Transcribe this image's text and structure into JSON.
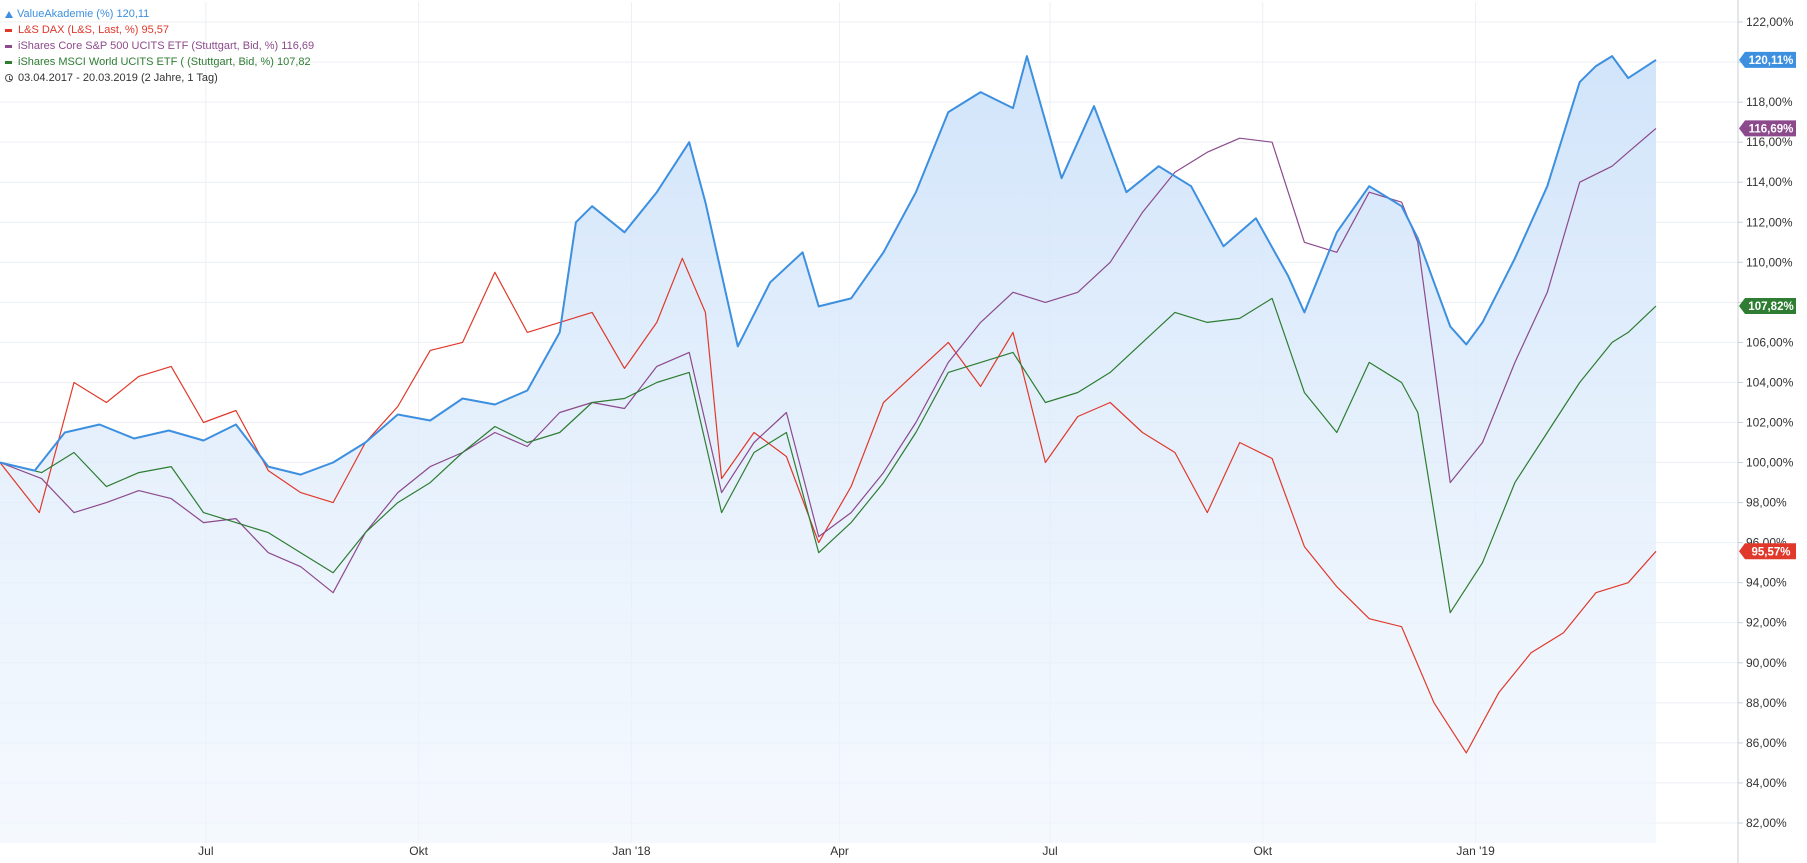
{
  "legend": {
    "items": [
      {
        "label": "ValueAkademie (%)",
        "value": "120,11",
        "color": "#3d8fe0",
        "marker": "area"
      },
      {
        "label": "L&S DAX (L&S, Last, %)",
        "value": "95,57",
        "color": "#e0392b",
        "marker": "line"
      },
      {
        "label": "iShares Core S&P 500 UCITS ETF (Stuttgart, Bid, %)",
        "value": "116,69",
        "color": "#8c4a8c",
        "marker": "line"
      },
      {
        "label": "iShares MSCI World UCITS ETF ( (Stuttgart, Bid, %)",
        "value": "107,82",
        "color": "#2e7d32",
        "marker": "line"
      }
    ],
    "period": "03.04.2017 - 20.03.2019  (2 Jahre, 1 Tag)"
  },
  "chart_data": {
    "type": "line",
    "x_range": [
      "2017-04-03",
      "2019-03-20"
    ],
    "ylim": [
      81,
      123
    ],
    "y_ticks": [
      {
        "v": 82,
        "label": "82,00%"
      },
      {
        "v": 84,
        "label": "84,00%"
      },
      {
        "v": 86,
        "label": "86,00%"
      },
      {
        "v": 88,
        "label": "88,00%"
      },
      {
        "v": 90,
        "label": "90,00%"
      },
      {
        "v": 92,
        "label": "92,00%"
      },
      {
        "v": 94,
        "label": "94,00%"
      },
      {
        "v": 96,
        "label": "96,00%"
      },
      {
        "v": 98,
        "label": "98,00%"
      },
      {
        "v": 100,
        "label": "100,00%"
      },
      {
        "v": 102,
        "label": "102,00%"
      },
      {
        "v": 104,
        "label": "104,00%"
      },
      {
        "v": 106,
        "label": "106,00%"
      },
      {
        "v": 108,
        "label": "108,00%"
      },
      {
        "v": 110,
        "label": "110,00%"
      },
      {
        "v": 112,
        "label": "112,00%"
      },
      {
        "v": 114,
        "label": "114,00%"
      },
      {
        "v": 116,
        "label": "116,00%"
      },
      {
        "v": 118,
        "label": "118,00%"
      },
      {
        "v": 120,
        "label": "120,00%"
      },
      {
        "v": 122,
        "label": "122,00%"
      }
    ],
    "x_ticks": [
      {
        "x": "2017-07-01",
        "label": "Jul"
      },
      {
        "x": "2017-10-01",
        "label": "Okt"
      },
      {
        "x": "2018-01-01",
        "label": "Jan '18"
      },
      {
        "x": "2018-04-01",
        "label": "Apr"
      },
      {
        "x": "2018-07-01",
        "label": "Jul"
      },
      {
        "x": "2018-10-01",
        "label": "Okt"
      },
      {
        "x": "2019-01-01",
        "label": "Jan '19"
      }
    ],
    "grid": true,
    "series": [
      {
        "name": "ValueAkademie (%)",
        "color": "#3d8fe0",
        "style": "area",
        "end_label": "120,11%",
        "points": [
          [
            "2017-04-03",
            100
          ],
          [
            "2017-04-18",
            99.6
          ],
          [
            "2017-05-01",
            101.5
          ],
          [
            "2017-05-16",
            101.9
          ],
          [
            "2017-05-31",
            101.2
          ],
          [
            "2017-06-15",
            101.6
          ],
          [
            "2017-06-30",
            101.1
          ],
          [
            "2017-07-14",
            101.9
          ],
          [
            "2017-07-28",
            99.8
          ],
          [
            "2017-08-11",
            99.4
          ],
          [
            "2017-08-25",
            100.0
          ],
          [
            "2017-09-08",
            101.0
          ],
          [
            "2017-09-22",
            102.4
          ],
          [
            "2017-10-06",
            102.1
          ],
          [
            "2017-10-20",
            103.2
          ],
          [
            "2017-11-03",
            102.9
          ],
          [
            "2017-11-17",
            103.6
          ],
          [
            "2017-12-01",
            106.5
          ],
          [
            "2017-12-08",
            112.0
          ],
          [
            "2017-12-15",
            112.8
          ],
          [
            "2017-12-29",
            111.5
          ],
          [
            "2018-01-12",
            113.5
          ],
          [
            "2018-01-26",
            116.0
          ],
          [
            "2018-02-02",
            113.0
          ],
          [
            "2018-02-16",
            105.8
          ],
          [
            "2018-03-02",
            109.0
          ],
          [
            "2018-03-16",
            110.5
          ],
          [
            "2018-03-23",
            107.8
          ],
          [
            "2018-04-06",
            108.2
          ],
          [
            "2018-04-20",
            110.5
          ],
          [
            "2018-05-04",
            113.5
          ],
          [
            "2018-05-18",
            117.5
          ],
          [
            "2018-06-01",
            118.5
          ],
          [
            "2018-06-15",
            117.7
          ],
          [
            "2018-06-21",
            120.3
          ],
          [
            "2018-07-06",
            114.2
          ],
          [
            "2018-07-20",
            117.8
          ],
          [
            "2018-08-03",
            113.5
          ],
          [
            "2018-08-17",
            114.8
          ],
          [
            "2018-08-31",
            113.8
          ],
          [
            "2018-09-14",
            110.8
          ],
          [
            "2018-09-28",
            112.2
          ],
          [
            "2018-10-12",
            109.3
          ],
          [
            "2018-10-19",
            107.5
          ],
          [
            "2018-11-02",
            111.5
          ],
          [
            "2018-11-16",
            113.8
          ],
          [
            "2018-11-30",
            112.8
          ],
          [
            "2018-12-07",
            111.2
          ],
          [
            "2018-12-21",
            106.8
          ],
          [
            "2018-12-28",
            105.9
          ],
          [
            "2019-01-04",
            107.0
          ],
          [
            "2019-01-18",
            110.2
          ],
          [
            "2019-02-01",
            113.8
          ],
          [
            "2019-02-15",
            119.0
          ],
          [
            "2019-02-22",
            119.8
          ],
          [
            "2019-03-01",
            120.3
          ],
          [
            "2019-03-08",
            119.2
          ],
          [
            "2019-03-20",
            120.11
          ]
        ]
      },
      {
        "name": "L&S DAX (L&S, Last, %)",
        "color": "#e0392b",
        "style": "line",
        "end_label": "95,57%",
        "points": [
          [
            "2017-04-03",
            100
          ],
          [
            "2017-04-20",
            97.5
          ],
          [
            "2017-05-05",
            104.0
          ],
          [
            "2017-05-19",
            103.0
          ],
          [
            "2017-06-02",
            104.3
          ],
          [
            "2017-06-16",
            104.8
          ],
          [
            "2017-06-30",
            102.0
          ],
          [
            "2017-07-14",
            102.6
          ],
          [
            "2017-07-28",
            99.6
          ],
          [
            "2017-08-11",
            98.5
          ],
          [
            "2017-08-25",
            98.0
          ],
          [
            "2017-09-08",
            101.0
          ],
          [
            "2017-09-22",
            102.8
          ],
          [
            "2017-10-06",
            105.6
          ],
          [
            "2017-10-20",
            106.0
          ],
          [
            "2017-11-03",
            109.5
          ],
          [
            "2017-11-17",
            106.5
          ],
          [
            "2017-12-01",
            107.0
          ],
          [
            "2017-12-15",
            107.5
          ],
          [
            "2017-12-29",
            104.7
          ],
          [
            "2018-01-12",
            107.0
          ],
          [
            "2018-01-23",
            110.2
          ],
          [
            "2018-02-02",
            107.5
          ],
          [
            "2018-02-09",
            99.2
          ],
          [
            "2018-02-23",
            101.5
          ],
          [
            "2018-03-09",
            100.3
          ],
          [
            "2018-03-23",
            96.0
          ],
          [
            "2018-04-06",
            98.8
          ],
          [
            "2018-04-20",
            103.0
          ],
          [
            "2018-05-04",
            104.5
          ],
          [
            "2018-05-18",
            106.0
          ],
          [
            "2018-06-01",
            103.8
          ],
          [
            "2018-06-15",
            106.5
          ],
          [
            "2018-06-29",
            100.0
          ],
          [
            "2018-07-13",
            102.3
          ],
          [
            "2018-07-27",
            103.0
          ],
          [
            "2018-08-10",
            101.5
          ],
          [
            "2018-08-24",
            100.5
          ],
          [
            "2018-09-07",
            97.5
          ],
          [
            "2018-09-21",
            101.0
          ],
          [
            "2018-10-05",
            100.2
          ],
          [
            "2018-10-19",
            95.8
          ],
          [
            "2018-11-02",
            93.8
          ],
          [
            "2018-11-16",
            92.2
          ],
          [
            "2018-11-30",
            91.8
          ],
          [
            "2018-12-14",
            88.0
          ],
          [
            "2018-12-28",
            85.5
          ],
          [
            "2019-01-11",
            88.5
          ],
          [
            "2019-01-25",
            90.5
          ],
          [
            "2019-02-08",
            91.5
          ],
          [
            "2019-02-22",
            93.5
          ],
          [
            "2019-03-08",
            94.0
          ],
          [
            "2019-03-20",
            95.57
          ]
        ]
      },
      {
        "name": "iShares Core S&P 500 UCITS ETF (Stuttgart, Bid, %)",
        "color": "#8c4a8c",
        "style": "line",
        "end_label": "116,69%",
        "points": [
          [
            "2017-04-03",
            100
          ],
          [
            "2017-04-21",
            99.2
          ],
          [
            "2017-05-05",
            97.5
          ],
          [
            "2017-05-19",
            98.0
          ],
          [
            "2017-06-02",
            98.6
          ],
          [
            "2017-06-16",
            98.2
          ],
          [
            "2017-06-30",
            97.0
          ],
          [
            "2017-07-14",
            97.2
          ],
          [
            "2017-07-28",
            95.5
          ],
          [
            "2017-08-11",
            94.8
          ],
          [
            "2017-08-25",
            93.5
          ],
          [
            "2017-09-08",
            96.5
          ],
          [
            "2017-09-22",
            98.5
          ],
          [
            "2017-10-06",
            99.8
          ],
          [
            "2017-10-20",
            100.5
          ],
          [
            "2017-11-03",
            101.5
          ],
          [
            "2017-11-17",
            100.8
          ],
          [
            "2017-12-01",
            102.5
          ],
          [
            "2017-12-15",
            103.0
          ],
          [
            "2017-12-29",
            102.7
          ],
          [
            "2018-01-12",
            104.8
          ],
          [
            "2018-01-26",
            105.5
          ],
          [
            "2018-02-09",
            98.5
          ],
          [
            "2018-02-23",
            101.0
          ],
          [
            "2018-03-09",
            102.5
          ],
          [
            "2018-03-23",
            96.3
          ],
          [
            "2018-04-06",
            97.5
          ],
          [
            "2018-04-20",
            99.5
          ],
          [
            "2018-05-04",
            102.0
          ],
          [
            "2018-05-18",
            105.0
          ],
          [
            "2018-06-01",
            107.0
          ],
          [
            "2018-06-15",
            108.5
          ],
          [
            "2018-06-29",
            108.0
          ],
          [
            "2018-07-13",
            108.5
          ],
          [
            "2018-07-27",
            110.0
          ],
          [
            "2018-08-10",
            112.5
          ],
          [
            "2018-08-24",
            114.5
          ],
          [
            "2018-09-07",
            115.5
          ],
          [
            "2018-09-21",
            116.2
          ],
          [
            "2018-10-05",
            116.0
          ],
          [
            "2018-10-19",
            111.0
          ],
          [
            "2018-11-02",
            110.5
          ],
          [
            "2018-11-16",
            113.5
          ],
          [
            "2018-11-30",
            113.0
          ],
          [
            "2018-12-07",
            111.0
          ],
          [
            "2018-12-21",
            99.0
          ],
          [
            "2019-01-04",
            101.0
          ],
          [
            "2019-01-18",
            105.0
          ],
          [
            "2019-02-01",
            108.5
          ],
          [
            "2019-02-15",
            114.0
          ],
          [
            "2019-03-01",
            114.8
          ],
          [
            "2019-03-08",
            115.5
          ],
          [
            "2019-03-20",
            116.69
          ]
        ]
      },
      {
        "name": "iShares MSCI World UCITS ETF ( (Stuttgart, Bid, %)",
        "color": "#2e7d32",
        "style": "line",
        "end_label": "107,82%",
        "points": [
          [
            "2017-04-03",
            100
          ],
          [
            "2017-04-21",
            99.5
          ],
          [
            "2017-05-05",
            100.5
          ],
          [
            "2017-05-19",
            98.8
          ],
          [
            "2017-06-02",
            99.5
          ],
          [
            "2017-06-16",
            99.8
          ],
          [
            "2017-06-30",
            97.5
          ],
          [
            "2017-07-14",
            97.0
          ],
          [
            "2017-07-28",
            96.5
          ],
          [
            "2017-08-11",
            95.5
          ],
          [
            "2017-08-25",
            94.5
          ],
          [
            "2017-09-08",
            96.5
          ],
          [
            "2017-09-22",
            98.0
          ],
          [
            "2017-10-06",
            99.0
          ],
          [
            "2017-10-20",
            100.5
          ],
          [
            "2017-11-03",
            101.8
          ],
          [
            "2017-11-17",
            101.0
          ],
          [
            "2017-12-01",
            101.5
          ],
          [
            "2017-12-15",
            103.0
          ],
          [
            "2017-12-29",
            103.2
          ],
          [
            "2018-01-12",
            104.0
          ],
          [
            "2018-01-26",
            104.5
          ],
          [
            "2018-02-09",
            97.5
          ],
          [
            "2018-02-23",
            100.5
          ],
          [
            "2018-03-09",
            101.5
          ],
          [
            "2018-03-23",
            95.5
          ],
          [
            "2018-04-06",
            97.0
          ],
          [
            "2018-04-20",
            99.0
          ],
          [
            "2018-05-04",
            101.5
          ],
          [
            "2018-05-18",
            104.5
          ],
          [
            "2018-06-01",
            105.0
          ],
          [
            "2018-06-15",
            105.5
          ],
          [
            "2018-06-29",
            103.0
          ],
          [
            "2018-07-13",
            103.5
          ],
          [
            "2018-07-27",
            104.5
          ],
          [
            "2018-08-10",
            106.0
          ],
          [
            "2018-08-24",
            107.5
          ],
          [
            "2018-09-07",
            107.0
          ],
          [
            "2018-09-21",
            107.2
          ],
          [
            "2018-10-05",
            108.2
          ],
          [
            "2018-10-19",
            103.5
          ],
          [
            "2018-11-02",
            101.5
          ],
          [
            "2018-11-16",
            105.0
          ],
          [
            "2018-11-30",
            104.0
          ],
          [
            "2018-12-07",
            102.5
          ],
          [
            "2018-12-21",
            92.5
          ],
          [
            "2019-01-04",
            95.0
          ],
          [
            "2019-01-18",
            99.0
          ],
          [
            "2019-02-01",
            101.5
          ],
          [
            "2019-02-15",
            104.0
          ],
          [
            "2019-03-01",
            106.0
          ],
          [
            "2019-03-08",
            106.5
          ],
          [
            "2019-03-20",
            107.82
          ]
        ]
      }
    ]
  }
}
